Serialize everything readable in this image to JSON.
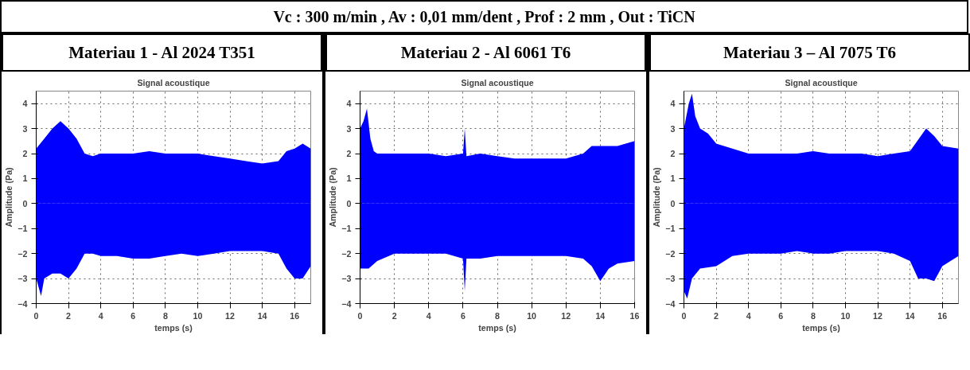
{
  "chart_data": [
    {
      "type": "other",
      "title": "Vc : 300 m/min  ,  Av : 0,01 mm/dent  ,  Prof : 2 mm  ,  Out : TiCN"
    },
    {
      "type": "area",
      "title": "Materiau 1  - Al 2024 T351",
      "subtitle": "Signal acoustique",
      "xlabel": "temps (s)",
      "ylabel": "Amplitude (Pa)",
      "xlim": [
        0,
        17
      ],
      "ylim": [
        -4,
        4.5
      ],
      "xticks": [
        0,
        2,
        4,
        6,
        8,
        10,
        12,
        14,
        16
      ],
      "yticks": [
        -4,
        -3,
        -2,
        -1,
        0,
        1,
        2,
        3,
        4
      ],
      "grid": true,
      "series": [
        {
          "color": "#0000ff",
          "x": [
            0,
            0.5,
            1,
            1.5,
            2,
            2.5,
            3,
            3.5,
            4,
            5,
            6,
            7,
            8,
            9,
            10,
            11,
            12,
            13,
            14,
            15,
            15.5,
            16,
            16.5,
            17
          ],
          "values": [
            2.2,
            2.6,
            3.0,
            3.3,
            3.0,
            2.6,
            2.0,
            1.9,
            2.0,
            2.0,
            2.0,
            2.1,
            2.0,
            2.0,
            2.0,
            1.9,
            1.8,
            1.7,
            1.6,
            1.7,
            2.1,
            2.2,
            2.4,
            2.2
          ]
        },
        {
          "color": "#0000ff",
          "x": [
            0,
            0.3,
            0.5,
            1,
            1.5,
            2,
            2.5,
            3,
            3.5,
            4,
            5,
            6,
            7,
            8,
            9,
            10,
            11,
            12,
            13,
            14,
            15,
            15.5,
            16,
            16.5,
            17
          ],
          "values": [
            -3.0,
            -3.7,
            -3.0,
            -2.8,
            -2.8,
            -3.0,
            -2.6,
            -2.0,
            -2.0,
            -2.1,
            -2.1,
            -2.2,
            -2.2,
            -2.1,
            -2.0,
            -2.1,
            -2.0,
            -1.9,
            -1.9,
            -1.9,
            -2.0,
            -2.6,
            -3.0,
            -3.0,
            -2.5
          ]
        }
      ]
    },
    {
      "type": "area",
      "title": "Materiau 2  - Al 6061 T6",
      "subtitle": "Signal acoustique",
      "xlabel": "temps (s)",
      "ylabel": "Amplitude (Pa)",
      "xlim": [
        0,
        16
      ],
      "ylim": [
        -4,
        4.5
      ],
      "xticks": [
        0,
        2,
        4,
        6,
        8,
        10,
        12,
        14,
        16
      ],
      "yticks": [
        -4,
        -3,
        -2,
        -1,
        0,
        1,
        2,
        3,
        4
      ],
      "grid": true,
      "series": [
        {
          "color": "#0000ff",
          "x": [
            0,
            0.2,
            0.4,
            0.6,
            0.8,
            1,
            2,
            3,
            4,
            5,
            6,
            6.1,
            6.2,
            7,
            8,
            9,
            10,
            11,
            12,
            13,
            13.5,
            14,
            15,
            16
          ],
          "values": [
            3.0,
            3.3,
            3.8,
            2.6,
            2.1,
            2.0,
            2.0,
            2.0,
            2.0,
            1.9,
            2.0,
            3.0,
            1.9,
            2.0,
            1.9,
            1.8,
            1.8,
            1.8,
            1.8,
            2.0,
            2.3,
            2.3,
            2.3,
            2.5
          ]
        },
        {
          "color": "#0000ff",
          "x": [
            0,
            0.5,
            1,
            2,
            3,
            4,
            5,
            6,
            6.1,
            6.2,
            7,
            8,
            9,
            10,
            11,
            12,
            13,
            13.5,
            14,
            14.5,
            15,
            16
          ],
          "values": [
            -2.6,
            -2.6,
            -2.3,
            -2.0,
            -2.0,
            -2.0,
            -2.0,
            -2.2,
            -3.5,
            -2.2,
            -2.2,
            -2.1,
            -2.1,
            -2.1,
            -2.1,
            -2.1,
            -2.2,
            -2.5,
            -3.1,
            -2.6,
            -2.4,
            -2.3
          ]
        }
      ]
    },
    {
      "type": "area",
      "title": "Materiau 3 – Al 7075 T6",
      "subtitle": "Signal acoustique",
      "xlabel": "temps (s)",
      "ylabel": "Amplitude (Pa)",
      "xlim": [
        0,
        17
      ],
      "ylim": [
        -4,
        4.5
      ],
      "xticks": [
        0,
        2,
        4,
        6,
        8,
        10,
        12,
        14,
        16
      ],
      "yticks": [
        -4,
        -3,
        -2,
        -1,
        0,
        1,
        2,
        3,
        4
      ],
      "grid": true,
      "series": [
        {
          "color": "#0000ff",
          "x": [
            0,
            0.3,
            0.5,
            0.7,
            1,
            1.5,
            2,
            3,
            4,
            5,
            6,
            7,
            8,
            9,
            10,
            11,
            12,
            13,
            14,
            15,
            15.5,
            16,
            17
          ],
          "values": [
            3.0,
            4.0,
            4.4,
            3.5,
            3.0,
            2.8,
            2.4,
            2.2,
            2.0,
            2.0,
            2.0,
            2.0,
            2.1,
            2.0,
            2.0,
            2.0,
            1.9,
            2.0,
            2.1,
            3.0,
            2.7,
            2.3,
            2.2
          ]
        },
        {
          "color": "#0000ff",
          "x": [
            0,
            0.2,
            0.5,
            1,
            2,
            3,
            4,
            5,
            6,
            7,
            8,
            9,
            10,
            11,
            12,
            13,
            14,
            14.5,
            15,
            15.5,
            16,
            17
          ],
          "values": [
            -3.5,
            -3.8,
            -3.0,
            -2.6,
            -2.5,
            -2.1,
            -2.0,
            -2.0,
            -2.0,
            -1.9,
            -2.0,
            -2.0,
            -1.9,
            -1.9,
            -1.9,
            -2.0,
            -2.3,
            -3.0,
            -3.0,
            -3.1,
            -2.5,
            -2.1
          ]
        }
      ]
    }
  ]
}
